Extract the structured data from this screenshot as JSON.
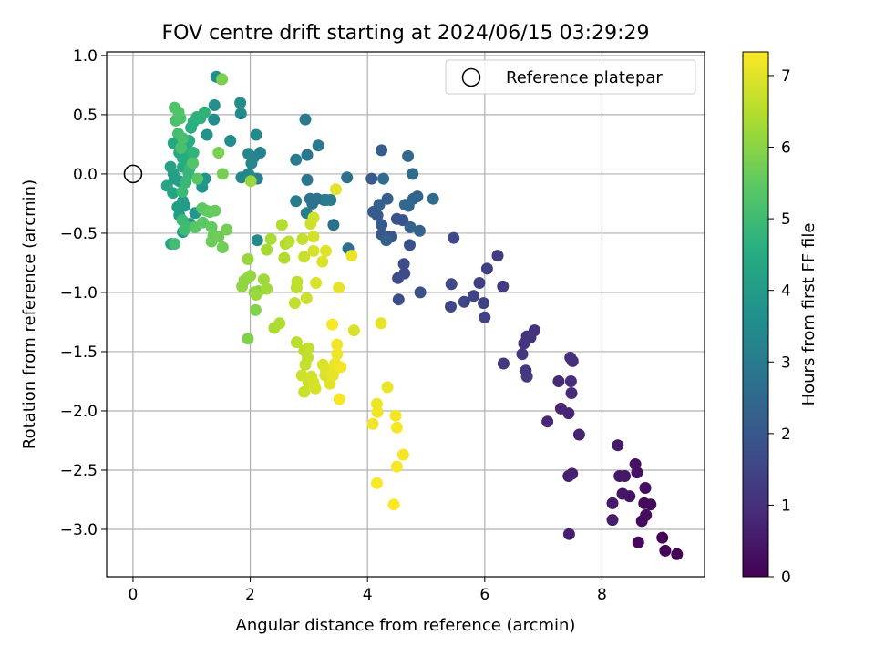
{
  "chart_data": {
    "type": "scatter",
    "title": "FOV centre drift starting at 2024/06/15 03:29:29",
    "xlabel": "Angular distance from reference (arcmin)",
    "ylabel": "Rotation from reference (arcmin)",
    "colorbar_label": "Hours from first FF file",
    "xlim": [
      -0.45,
      9.75
    ],
    "ylim": [
      -3.4,
      1.03
    ],
    "xticks": [
      0,
      2,
      4,
      6,
      8
    ],
    "yticks": [
      1.0,
      0.5,
      0.0,
      -0.5,
      -1.0,
      -1.5,
      -2.0,
      -2.5,
      -3.0
    ],
    "xtick_labels": [
      "0",
      "2",
      "4",
      "6",
      "8"
    ],
    "ytick_labels": [
      "1.0",
      "0.5",
      "0.0",
      "−0.5",
      "−1.0",
      "−1.5",
      "−2.0",
      "−2.5",
      "−3.0"
    ],
    "clim": [
      0,
      7.33
    ],
    "cticks": [
      0,
      1,
      2,
      3,
      4,
      5,
      6,
      7
    ],
    "ctick_labels": [
      "0",
      "1",
      "2",
      "3",
      "4",
      "5",
      "6",
      "7"
    ],
    "grid": true,
    "colormap": "viridis",
    "legend": {
      "label": "Reference platepar",
      "placement": "top-right"
    },
    "reference": {
      "x": 0,
      "y": 0
    },
    "points": [
      [
        9.28,
        -3.21,
        0.02
      ],
      [
        9.08,
        -3.18,
        0.05
      ],
      [
        9.03,
        -3.07,
        0.08
      ],
      [
        8.62,
        -3.11,
        0.12
      ],
      [
        8.83,
        -2.79,
        0.15
      ],
      [
        8.72,
        -2.78,
        0.18
      ],
      [
        8.68,
        -2.93,
        0.22
      ],
      [
        8.75,
        -2.88,
        0.25
      ],
      [
        8.74,
        -2.65,
        0.28
      ],
      [
        8.6,
        -2.52,
        0.32
      ],
      [
        8.57,
        -2.45,
        0.35
      ],
      [
        8.47,
        -2.72,
        0.38
      ],
      [
        8.35,
        -2.7,
        0.42
      ],
      [
        8.39,
        -2.55,
        0.45
      ],
      [
        8.3,
        -2.55,
        0.48
      ],
      [
        8.27,
        -2.29,
        0.52
      ],
      [
        8.18,
        -2.78,
        0.55
      ],
      [
        8.18,
        -2.92,
        0.58
      ],
      [
        7.44,
        -3.04,
        0.62
      ],
      [
        7.43,
        -2.55,
        0.65
      ],
      [
        7.49,
        -2.53,
        0.68
      ],
      [
        7.61,
        -2.2,
        0.72
      ],
      [
        7.43,
        -2.02,
        0.75
      ],
      [
        7.3,
        -1.98,
        0.78
      ],
      [
        7.07,
        -2.09,
        0.82
      ],
      [
        7.26,
        -1.75,
        0.85
      ],
      [
        7.48,
        -1.85,
        0.88
      ],
      [
        7.47,
        -1.75,
        0.92
      ],
      [
        7.5,
        -1.58,
        0.95
      ],
      [
        7.46,
        -1.55,
        0.98
      ],
      [
        6.85,
        -1.32,
        1.02
      ],
      [
        6.78,
        -1.38,
        1.05
      ],
      [
        6.72,
        -1.37,
        1.08
      ],
      [
        6.67,
        -1.43,
        1.12
      ],
      [
        6.64,
        -1.52,
        1.15
      ],
      [
        6.7,
        -1.66,
        1.18
      ],
      [
        6.72,
        -1.71,
        1.22
      ],
      [
        6.32,
        -1.6,
        1.25
      ],
      [
        6.22,
        -0.69,
        1.28
      ],
      [
        6.31,
        -0.95,
        1.32
      ],
      [
        6.04,
        -0.8,
        1.35
      ],
      [
        5.91,
        -0.92,
        1.38
      ],
      [
        5.98,
        -1.09,
        1.42
      ],
      [
        6.0,
        -1.21,
        1.45
      ],
      [
        5.81,
        -1.03,
        1.48
      ],
      [
        5.65,
        -1.08,
        1.52
      ],
      [
        5.43,
        -0.93,
        1.55
      ],
      [
        5.42,
        -1.12,
        1.58
      ],
      [
        5.47,
        -0.54,
        1.62
      ],
      [
        4.62,
        -0.76,
        1.65
      ],
      [
        4.63,
        -0.84,
        1.68
      ],
      [
        4.52,
        -0.88,
        1.72
      ],
      [
        4.53,
        -1.06,
        1.75
      ],
      [
        4.9,
        -1.0,
        1.78
      ],
      [
        4.72,
        -0.6,
        1.82
      ],
      [
        4.6,
        -0.39,
        1.85
      ],
      [
        4.5,
        -0.38,
        1.88
      ],
      [
        4.41,
        -0.53,
        1.92
      ],
      [
        4.31,
        -0.53,
        1.95
      ],
      [
        4.24,
        -0.51,
        1.98
      ],
      [
        4.24,
        -0.43,
        2.02
      ],
      [
        4.17,
        -0.35,
        2.05
      ],
      [
        4.1,
        -0.32,
        2.08
      ],
      [
        4.07,
        -0.04,
        2.12
      ],
      [
        4.24,
        0.2,
        2.15
      ],
      [
        4.34,
        -0.21,
        2.18
      ],
      [
        4.2,
        -0.26,
        2.22
      ],
      [
        4.32,
        -0.56,
        2.25
      ],
      [
        4.73,
        -0.45,
        2.28
      ],
      [
        4.89,
        -0.48,
        2.32
      ],
      [
        4.85,
        -0.19,
        2.35
      ],
      [
        4.78,
        -0.21,
        2.38
      ],
      [
        4.7,
        -0.27,
        2.42
      ],
      [
        4.64,
        -0.26,
        2.45
      ],
      [
        4.69,
        0.15,
        2.48
      ],
      [
        4.77,
        0.0,
        2.52
      ],
      [
        5.12,
        -0.21,
        2.55
      ],
      [
        4.27,
        -0.04,
        2.58
      ],
      [
        3.67,
        -0.63,
        2.62
      ],
      [
        3.65,
        -0.03,
        2.65
      ],
      [
        3.42,
        -0.43,
        2.68
      ],
      [
        3.26,
        -0.22,
        2.72
      ],
      [
        3.14,
        -0.21,
        2.75
      ],
      [
        3.06,
        -0.25,
        2.78
      ],
      [
        3.02,
        -0.21,
        2.82
      ],
      [
        2.97,
        -0.05,
        2.85
      ],
      [
        2.97,
        0.16,
        2.88
      ],
      [
        2.94,
        0.46,
        2.92
      ],
      [
        3.16,
        0.24,
        2.95
      ],
      [
        3.3,
        -0.22,
        2.98
      ],
      [
        3.37,
        -0.22,
        3.02
      ],
      [
        2.78,
        0.12,
        3.05
      ],
      [
        2.78,
        -0.23,
        3.08
      ],
      [
        2.96,
        -0.33,
        3.12
      ],
      [
        2.12,
        -0.04,
        3.15
      ],
      [
        2.08,
        -0.04,
        3.18
      ],
      [
        2.17,
        0.18,
        3.22
      ],
      [
        2.06,
        0.14,
        3.25
      ],
      [
        1.97,
        0.17,
        3.28
      ],
      [
        2.02,
        0.09,
        3.32
      ],
      [
        1.97,
        0.0,
        3.35
      ],
      [
        1.85,
        -0.03,
        3.38
      ],
      [
        2.12,
        -0.56,
        3.42
      ],
      [
        2.1,
        0.33,
        3.45
      ],
      [
        1.84,
        0.51,
        3.48
      ],
      [
        1.83,
        0.6,
        3.52
      ],
      [
        1.66,
        0.28,
        3.55
      ],
      [
        1.38,
        0.46,
        3.58
      ],
      [
        1.39,
        0.58,
        3.62
      ],
      [
        1.42,
        0.82,
        3.65
      ],
      [
        1.51,
        0.8,
        3.68
      ],
      [
        1.26,
        0.33,
        3.72
      ],
      [
        1.23,
        -0.04,
        3.75
      ],
      [
        1.18,
        -0.11,
        3.78
      ],
      [
        1.16,
        -0.06,
        3.82
      ],
      [
        1.06,
        -0.33,
        3.85
      ],
      [
        0.97,
        -0.42,
        3.88
      ],
      [
        0.85,
        -0.49,
        3.92
      ],
      [
        0.88,
        -0.27,
        3.95
      ],
      [
        0.85,
        -0.23,
        3.98
      ],
      [
        0.79,
        -0.35,
        4.02
      ],
      [
        0.76,
        -0.28,
        4.05
      ],
      [
        0.79,
        -0.06,
        4.08
      ],
      [
        0.71,
        -0.04,
        4.12
      ],
      [
        0.69,
        0.0,
        4.15
      ],
      [
        0.64,
        0.06,
        4.18
      ],
      [
        0.68,
        -0.16,
        4.22
      ],
      [
        0.65,
        -0.59,
        4.25
      ],
      [
        0.58,
        -0.1,
        4.28
      ],
      [
        0.69,
        0.26,
        4.32
      ],
      [
        0.78,
        0.27,
        4.35
      ],
      [
        0.79,
        0.18,
        4.38
      ],
      [
        0.85,
        0.13,
        4.42
      ],
      [
        0.85,
        0.06,
        4.45
      ],
      [
        0.9,
        0.17,
        4.48
      ],
      [
        0.92,
        0.22,
        4.52
      ],
      [
        0.96,
        0.28,
        4.55
      ],
      [
        0.99,
        0.39,
        4.58
      ],
      [
        1.03,
        0.44,
        4.62
      ],
      [
        1.09,
        0.48,
        4.65
      ],
      [
        1.15,
        0.47,
        4.68
      ],
      [
        1.22,
        0.52,
        4.72
      ],
      [
        1.03,
        0.18,
        4.75
      ],
      [
        1.01,
        0.1,
        4.78
      ],
      [
        0.97,
        0.05,
        4.82
      ],
      [
        0.95,
        0.0,
        4.85
      ],
      [
        0.9,
        -0.07,
        4.88
      ],
      [
        0.84,
        -0.15,
        4.92
      ],
      [
        0.84,
        -0.39,
        4.95
      ],
      [
        0.92,
        -0.45,
        4.98
      ],
      [
        0.88,
        -0.47,
        5.02
      ],
      [
        0.71,
        -0.59,
        5.05
      ],
      [
        0.77,
        0.34,
        5.08
      ],
      [
        0.85,
        0.3,
        5.12
      ],
      [
        0.82,
        0.22,
        5.15
      ],
      [
        0.73,
        0.45,
        5.18
      ],
      [
        0.81,
        0.47,
        5.22
      ],
      [
        0.71,
        0.56,
        5.25
      ],
      [
        0.78,
        0.52,
        5.28
      ],
      [
        1.02,
        0.09,
        5.32
      ],
      [
        1.1,
        -0.04,
        5.35
      ],
      [
        1.06,
        -0.45,
        5.38
      ],
      [
        1.19,
        -0.41,
        5.42
      ],
      [
        1.18,
        -0.29,
        5.45
      ],
      [
        1.25,
        -0.31,
        5.48
      ],
      [
        1.31,
        -0.32,
        5.52
      ],
      [
        1.34,
        -0.45,
        5.55
      ],
      [
        1.4,
        -0.31,
        5.58
      ],
      [
        1.37,
        -0.52,
        5.62
      ],
      [
        1.34,
        -0.57,
        5.65
      ],
      [
        1.46,
        -0.53,
        5.68
      ],
      [
        1.53,
        -0.62,
        5.72
      ],
      [
        1.6,
        -0.47,
        5.75
      ],
      [
        1.53,
        0.0,
        5.78
      ],
      [
        1.46,
        0.18,
        5.82
      ],
      [
        1.52,
        0.8,
        5.85
      ],
      [
        1.96,
        -1.39,
        5.88
      ],
      [
        2.09,
        -1.15,
        5.92
      ],
      [
        2.14,
        -0.99,
        5.95
      ],
      [
        2.07,
        -1.0,
        5.98
      ],
      [
        1.95,
        -0.88,
        6.02
      ],
      [
        1.9,
        -0.9,
        6.05
      ],
      [
        1.86,
        -0.95,
        6.08
      ],
      [
        2.0,
        -0.86,
        6.12
      ],
      [
        1.96,
        -0.72,
        6.15
      ],
      [
        2.01,
        -0.06,
        6.18
      ],
      [
        2.1,
        -1.02,
        6.22
      ],
      [
        2.23,
        -0.89,
        6.25
      ],
      [
        2.28,
        -0.97,
        6.28
      ],
      [
        2.28,
        -0.64,
        6.32
      ],
      [
        2.35,
        -0.55,
        6.35
      ],
      [
        2.41,
        -1.3,
        6.38
      ],
      [
        2.5,
        -1.26,
        6.42
      ],
      [
        2.58,
        -0.71,
        6.45
      ],
      [
        2.54,
        -0.43,
        6.48
      ],
      [
        2.6,
        -0.59,
        6.52
      ],
      [
        2.66,
        -0.57,
        6.55
      ],
      [
        2.79,
        -0.96,
        6.58
      ],
      [
        2.8,
        -0.91,
        6.62
      ],
      [
        2.76,
        -1.09,
        6.65
      ],
      [
        2.89,
        -0.55,
        6.68
      ],
      [
        2.92,
        -0.7,
        6.72
      ],
      [
        2.96,
        -1.05,
        6.75
      ],
      [
        3.03,
        -0.42,
        6.78
      ],
      [
        3.08,
        -0.37,
        6.82
      ],
      [
        3.08,
        -0.53,
        6.85
      ],
      [
        3.08,
        -0.65,
        6.88
      ],
      [
        3.12,
        -0.92,
        6.92
      ],
      [
        3.23,
        -0.74,
        6.95
      ],
      [
        3.29,
        -0.65,
        6.98
      ],
      [
        3.46,
        -0.13,
        7.02
      ],
      [
        3.51,
        -0.96,
        7.05
      ],
      [
        3.73,
        -0.69,
        7.08
      ],
      [
        2.79,
        -1.42,
        6.55
      ],
      [
        2.92,
        -1.49,
        6.58
      ],
      [
        2.98,
        -1.55,
        6.62
      ],
      [
        2.99,
        -1.47,
        6.65
      ],
      [
        2.94,
        -1.61,
        6.68
      ],
      [
        2.99,
        -1.76,
        6.72
      ],
      [
        2.92,
        -1.84,
        6.75
      ],
      [
        2.88,
        -1.7,
        6.78
      ],
      [
        3.04,
        -1.71,
        6.82
      ],
      [
        3.08,
        -1.76,
        6.85
      ],
      [
        3.11,
        -1.81,
        6.88
      ],
      [
        3.24,
        -1.61,
        6.92
      ],
      [
        3.28,
        -1.7,
        6.95
      ],
      [
        3.29,
        -1.65,
        6.98
      ],
      [
        3.36,
        -1.77,
        7.02
      ],
      [
        3.41,
        -1.7,
        7.05
      ],
      [
        3.43,
        -1.66,
        7.08
      ],
      [
        3.45,
        -1.6,
        7.12
      ],
      [
        3.48,
        -1.52,
        7.15
      ],
      [
        3.48,
        -1.44,
        7.18
      ],
      [
        3.54,
        -1.63,
        7.22
      ],
      [
        3.52,
        -1.9,
        7.25
      ],
      [
        3.4,
        -1.27,
        7.28
      ],
      [
        3.77,
        -1.32,
        6.92
      ],
      [
        4.23,
        -1.26,
        7.05
      ],
      [
        4.34,
        -1.8,
        7.1
      ],
      [
        4.16,
        -1.94,
        7.15
      ],
      [
        4.17,
        -2.01,
        7.18
      ],
      [
        4.09,
        -2.11,
        7.2
      ],
      [
        4.48,
        -2.04,
        7.22
      ],
      [
        4.5,
        -2.14,
        7.24
      ],
      [
        4.61,
        -2.37,
        7.26
      ],
      [
        4.5,
        -2.47,
        7.28
      ],
      [
        4.16,
        -2.61,
        7.3
      ],
      [
        4.45,
        -2.79,
        7.32
      ]
    ]
  }
}
